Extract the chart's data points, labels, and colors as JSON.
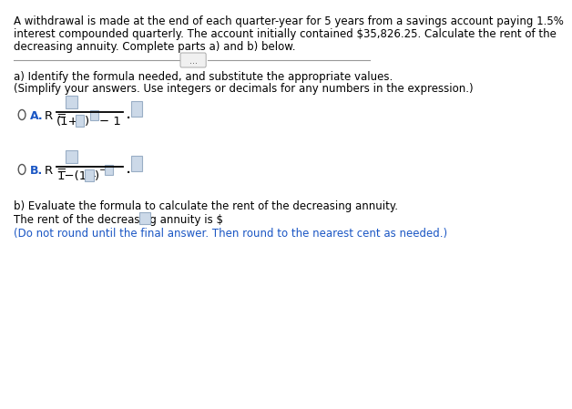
{
  "title_line1": "A withdrawal is made at the end of each quarter-year for 5 years from a savings account paying 1.5%",
  "title_line2": "interest compounded quarterly. The account initially contained $35,826.25. Calculate the rent of the",
  "title_line3": "decreasing annuity. Complete parts a) and b) below.",
  "part_a_label": "a) Identify the formula needed, and substitute the appropriate values.",
  "part_a_sub": "(Simplify your answers. Use integers or decimals for any numbers in the expression.)",
  "part_b_label": "b) Evaluate the formula to calculate the rent of the decreasing annuity.",
  "part_b_answer_pre": "The rent of the decreasing annuity is $",
  "part_b_answer_post": ".",
  "part_b_note": "(Do not round until the final answer. Then round to the nearest cent as needed.)",
  "separator_dots": "...",
  "bg_color": "#ffffff",
  "text_color": "#000000",
  "blue_color": "#1a56c4",
  "box_fill": "#ccd9e8",
  "box_edge": "#99aec5",
  "radio_edge": "#555555",
  "font_size_main": 8.5,
  "font_size_formula": 9.5,
  "font_size_label": 9.0
}
